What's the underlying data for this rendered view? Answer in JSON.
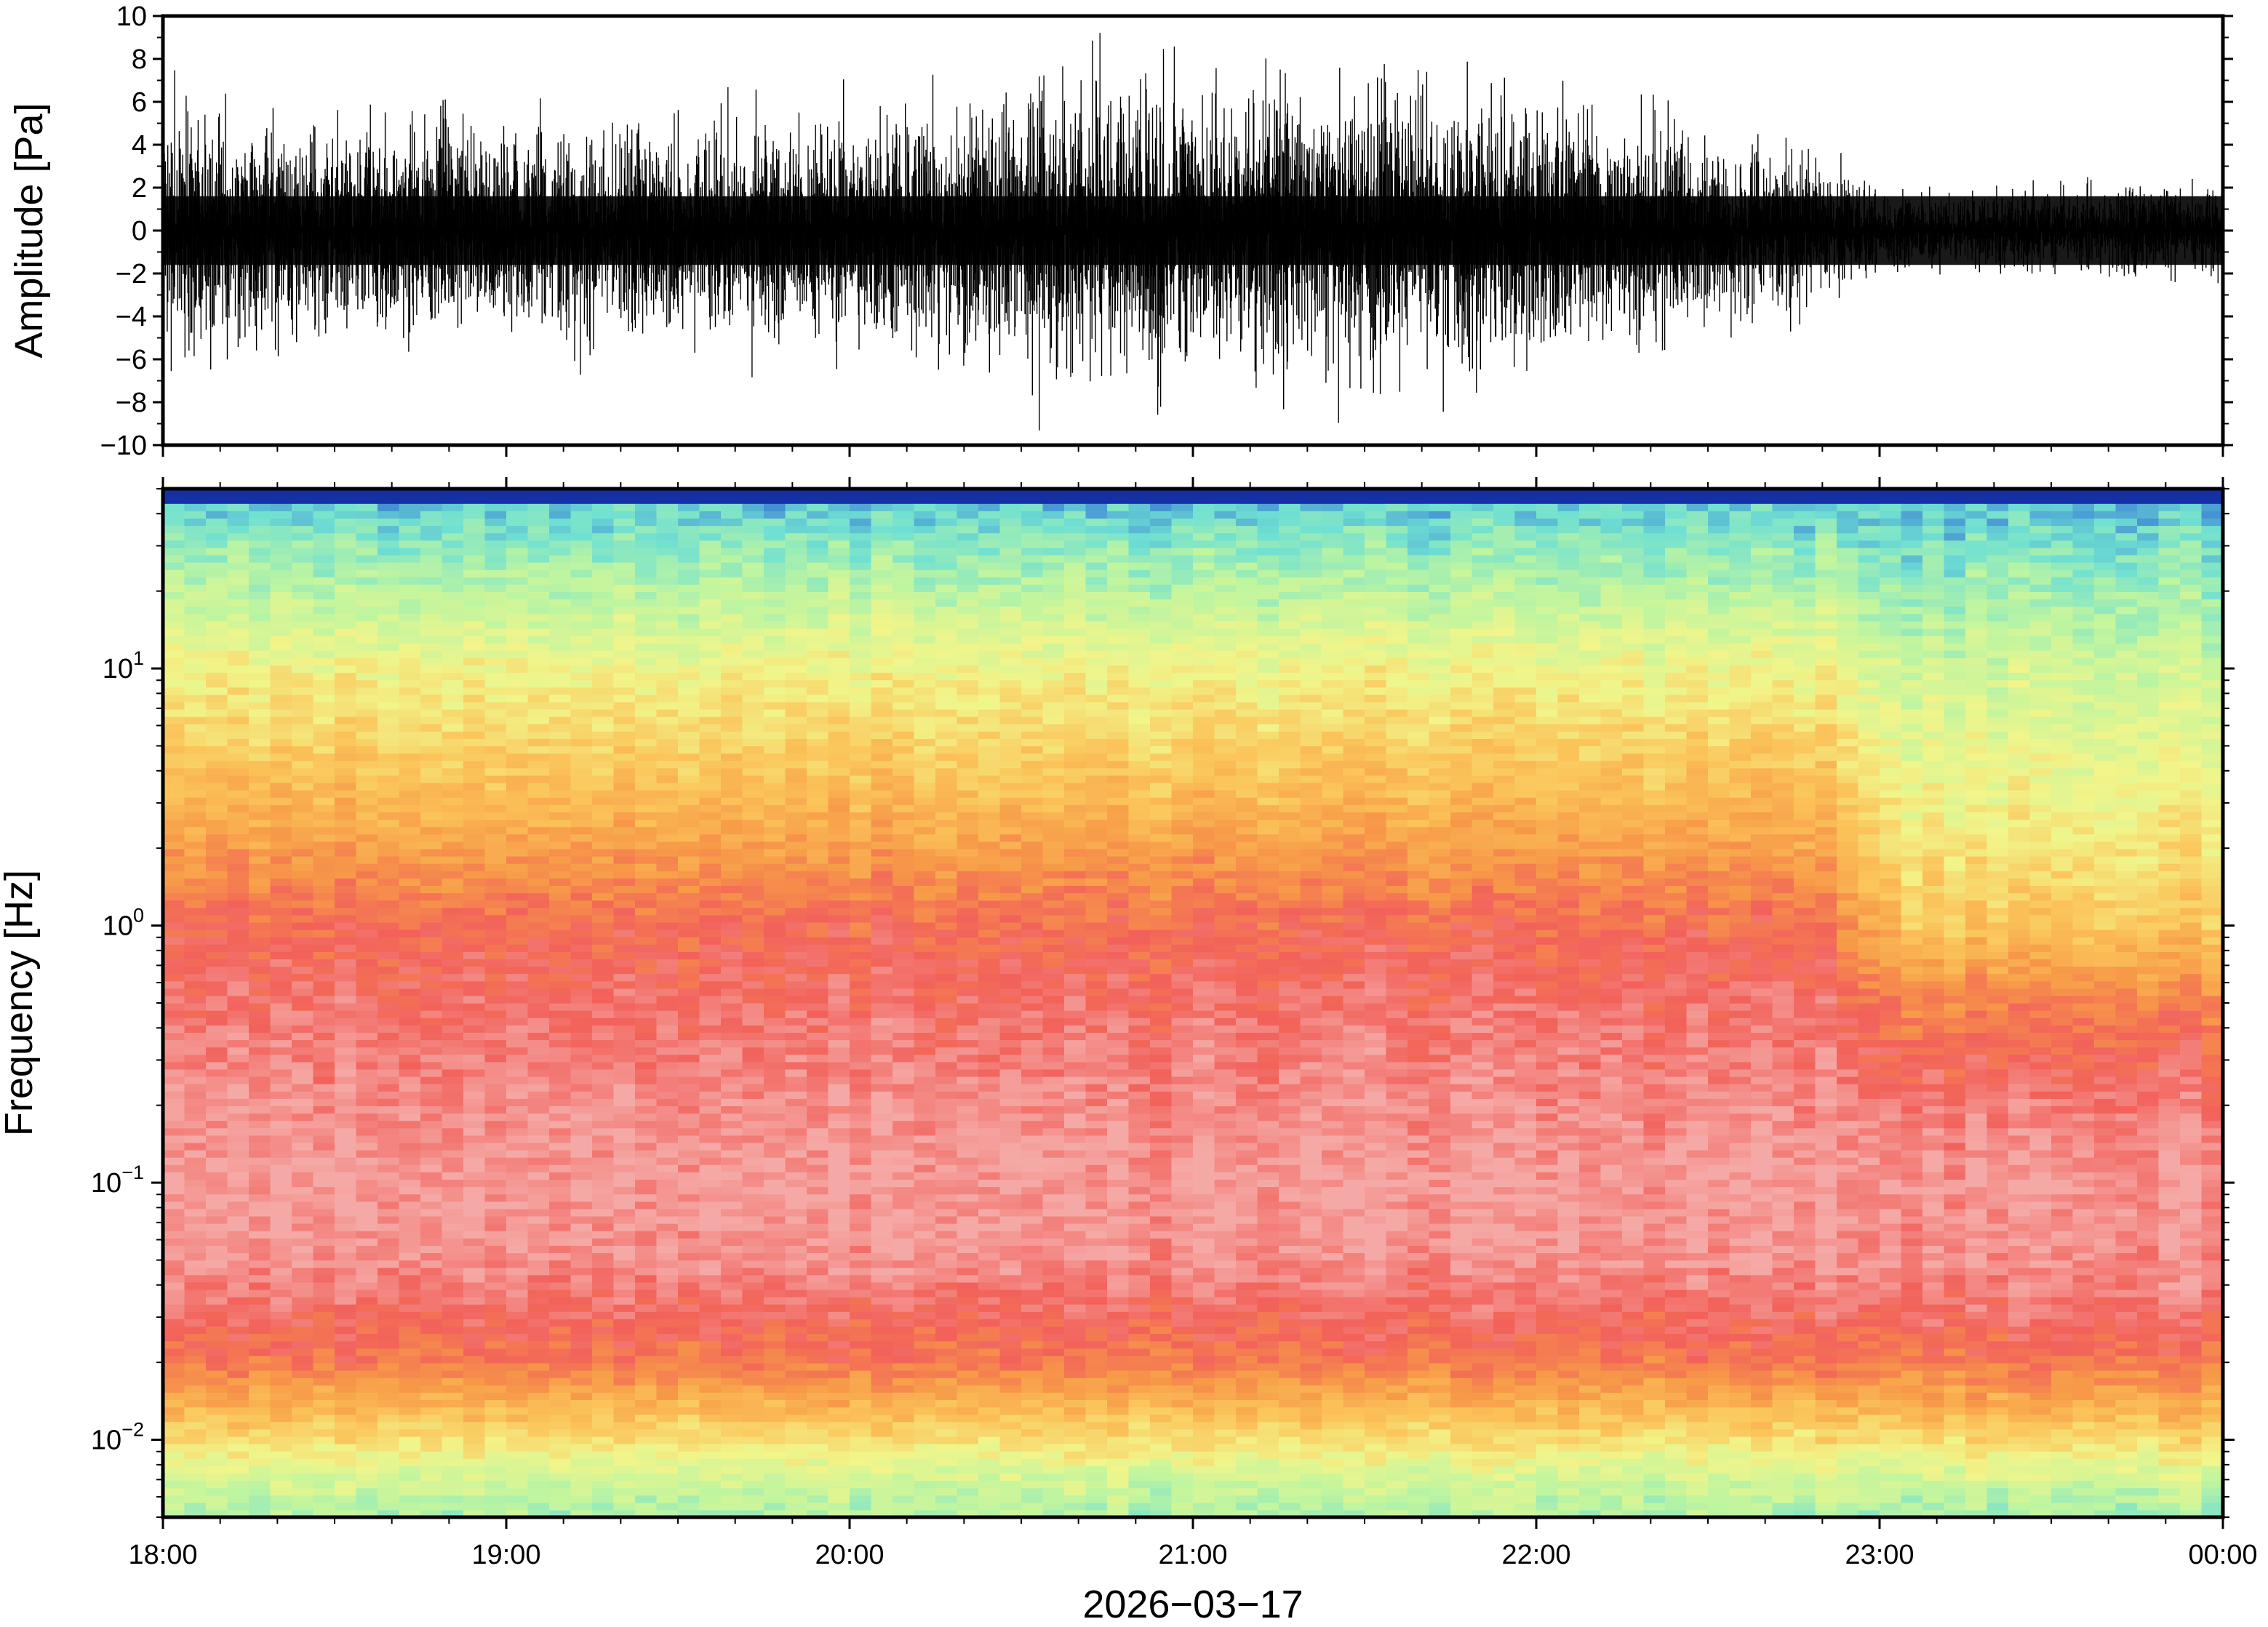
{
  "chart_data": [
    {
      "type": "line",
      "panel": "waveform",
      "ylabel": "Amplitude [Pa]",
      "ylim": [
        -10,
        10
      ],
      "yticks": [
        "10",
        "8",
        "6",
        "4",
        "2",
        "0",
        "−2",
        "−4",
        "−6",
        "−8",
        "−10"
      ],
      "ytick_values": [
        10,
        8,
        6,
        4,
        2,
        0,
        -2,
        -4,
        -6,
        -8,
        -10
      ],
      "line_color": "#000000",
      "envelope_time_h": [
        18.0,
        18.25,
        18.5,
        18.75,
        19.0,
        19.25,
        19.5,
        19.75,
        20.0,
        20.25,
        20.5,
        20.75,
        21.0,
        21.25,
        21.5,
        21.75,
        22.0,
        22.25,
        22.5,
        22.75,
        22.9,
        23.0,
        23.25,
        23.5,
        23.75,
        24.0
      ],
      "envelope_amplitude_pa": [
        9,
        7,
        7,
        7.5,
        7.5,
        7,
        7,
        7.5,
        8,
        8.5,
        9.5,
        9.5,
        10,
        10,
        10,
        9.5,
        8.5,
        7.5,
        6.5,
        5.5,
        4,
        2.5,
        2.5,
        3,
        3,
        3
      ]
    },
    {
      "type": "heatmap",
      "panel": "spectrogram",
      "ylabel": "Frequency [Hz]",
      "xlabel": "2026−03−17",
      "yscale": "log",
      "ylim": [
        0.005,
        50
      ],
      "yticks": [
        {
          "base": "10",
          "exp": "1"
        },
        {
          "base": "10",
          "exp": "0"
        },
        {
          "base": "10",
          "exp": "−1"
        },
        {
          "base": "10",
          "exp": "−2"
        }
      ],
      "ytick_values": [
        10,
        1,
        0.1,
        0.01
      ],
      "xticks": [
        "18:00",
        "19:00",
        "20:00",
        "21:00",
        "22:00",
        "23:00",
        "00:00"
      ],
      "xtick_values_h": [
        18,
        19,
        20,
        21,
        22,
        23,
        24
      ],
      "xlim_h": [
        18,
        24
      ],
      "colormap": [
        "#0a1a8c",
        "#2a5fd6",
        "#6fe0d2",
        "#bff5a0",
        "#f1f58a",
        "#fbc45a",
        "#f79a48",
        "#f2615a",
        "#f5a9a6"
      ],
      "band_structure": {
        "frequency_hz": [
          50,
          45,
          30,
          10,
          3,
          1,
          0.5,
          0.2,
          0.1,
          0.05,
          0.03,
          0.02,
          0.012,
          0.007,
          0.005
        ],
        "level_before_23h": [
          0.0,
          0.22,
          0.3,
          0.5,
          0.66,
          0.85,
          0.9,
          0.95,
          0.98,
          0.96,
          0.88,
          0.82,
          0.62,
          0.42,
          0.35
        ],
        "level_after_23h": [
          0.0,
          0.22,
          0.27,
          0.42,
          0.5,
          0.62,
          0.8,
          0.92,
          0.97,
          0.95,
          0.9,
          0.82,
          0.64,
          0.42,
          0.32
        ]
      }
    }
  ]
}
